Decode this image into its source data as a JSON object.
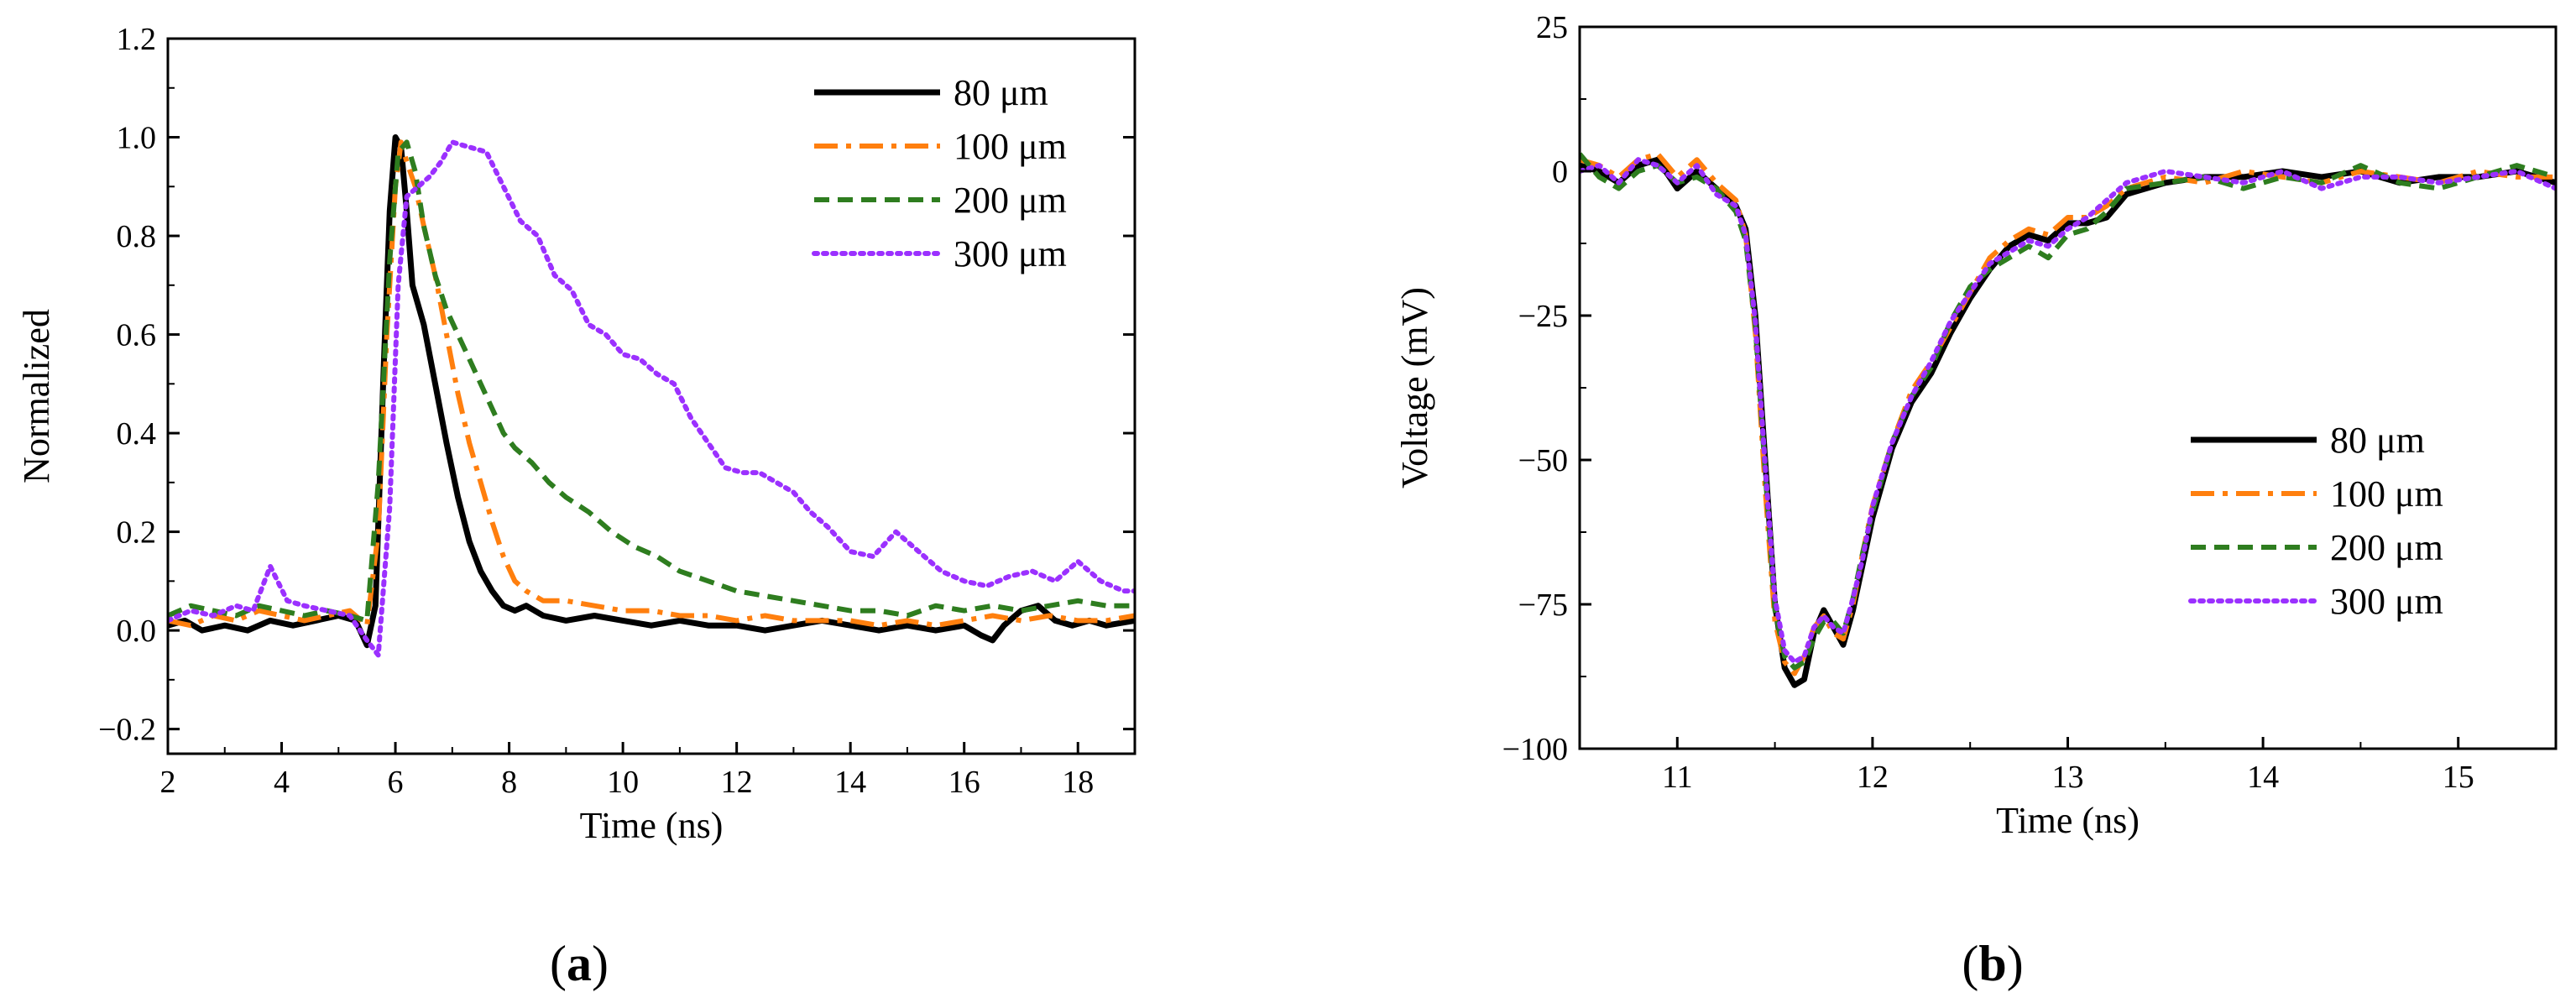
{
  "panels": [
    {
      "label_open": "(",
      "label_letter": "a",
      "label_close": ")"
    },
    {
      "label_open": "(",
      "label_letter": "b",
      "label_close": ")"
    }
  ],
  "chart_data": [
    {
      "type": "line",
      "title": "",
      "xlabel": "Time (ns)",
      "ylabel": "Normalized",
      "xlim": [
        2,
        19
      ],
      "ylim": [
        -0.25,
        1.2
      ],
      "xticks": [
        2,
        4,
        6,
        8,
        10,
        12,
        14,
        16,
        18
      ],
      "xtick_labels": [
        "2",
        "4",
        "6",
        "8",
        "10",
        "12",
        "14",
        "16",
        "18"
      ],
      "yticks": [
        -0.2,
        0.0,
        0.2,
        0.4,
        0.6,
        0.8,
        1.0,
        1.2
      ],
      "ytick_labels": [
        "−0.2",
        "0.0",
        "0.2",
        "0.4",
        "0.6",
        "0.8",
        "1.0",
        "1.2"
      ],
      "grid": false,
      "legend_position": "top-right",
      "series": [
        {
          "name": "80 μm",
          "color": "#000000",
          "dash": "solid",
          "x": [
            2.0,
            2.3,
            2.6,
            3.0,
            3.4,
            3.8,
            4.2,
            4.6,
            5.0,
            5.3,
            5.5,
            5.65,
            5.8,
            5.9,
            6.0,
            6.1,
            6.2,
            6.3,
            6.5,
            6.7,
            6.9,
            7.1,
            7.3,
            7.5,
            7.7,
            7.9,
            8.1,
            8.3,
            8.6,
            9.0,
            9.5,
            10.0,
            10.5,
            11.0,
            11.5,
            12.0,
            12.5,
            13.0,
            13.5,
            14.0,
            14.5,
            15.0,
            15.5,
            16.0,
            16.3,
            16.5,
            16.7,
            17.0,
            17.3,
            17.6,
            17.9,
            18.2,
            18.5,
            19.0
          ],
          "y": [
            0.01,
            0.02,
            0.0,
            0.01,
            0.0,
            0.02,
            0.01,
            0.02,
            0.03,
            0.02,
            -0.03,
            0.05,
            0.55,
            0.85,
            1.0,
            0.98,
            0.85,
            0.7,
            0.62,
            0.5,
            0.38,
            0.27,
            0.18,
            0.12,
            0.08,
            0.05,
            0.04,
            0.05,
            0.03,
            0.02,
            0.03,
            0.02,
            0.01,
            0.02,
            0.01,
            0.01,
            0.0,
            0.01,
            0.02,
            0.01,
            0.0,
            0.01,
            0.0,
            0.01,
            -0.01,
            -0.02,
            0.01,
            0.04,
            0.05,
            0.02,
            0.01,
            0.02,
            0.01,
            0.02
          ]
        },
        {
          "name": "100 μm",
          "color": "#ff7f0e",
          "dash": "dashdot",
          "x": [
            2.0,
            2.4,
            2.8,
            3.2,
            3.6,
            4.0,
            4.4,
            4.8,
            5.2,
            5.5,
            5.7,
            5.85,
            6.0,
            6.1,
            6.2,
            6.35,
            6.5,
            6.7,
            6.9,
            7.1,
            7.3,
            7.5,
            7.7,
            7.9,
            8.1,
            8.3,
            8.6,
            9.0,
            9.5,
            10.0,
            10.5,
            11.0,
            11.5,
            12.0,
            12.5,
            13.0,
            13.5,
            14.0,
            14.5,
            15.0,
            15.5,
            16.0,
            16.5,
            17.0,
            17.5,
            18.0,
            18.5,
            19.0
          ],
          "y": [
            0.02,
            0.01,
            0.03,
            0.02,
            0.04,
            0.03,
            0.02,
            0.03,
            0.04,
            0.01,
            0.2,
            0.6,
            0.9,
            0.99,
            0.95,
            0.9,
            0.82,
            0.72,
            0.6,
            0.48,
            0.38,
            0.3,
            0.22,
            0.15,
            0.1,
            0.08,
            0.06,
            0.06,
            0.05,
            0.04,
            0.04,
            0.03,
            0.03,
            0.02,
            0.03,
            0.02,
            0.02,
            0.02,
            0.01,
            0.02,
            0.01,
            0.02,
            0.03,
            0.02,
            0.03,
            0.02,
            0.02,
            0.03
          ]
        },
        {
          "name": "200 μm",
          "color": "#2e7d1f",
          "dash": "dashed",
          "x": [
            2.0,
            2.4,
            2.8,
            3.2,
            3.6,
            4.0,
            4.4,
            4.8,
            5.2,
            5.5,
            5.7,
            5.9,
            6.05,
            6.2,
            6.35,
            6.5,
            6.7,
            6.9,
            7.1,
            7.3,
            7.5,
            7.7,
            7.9,
            8.1,
            8.4,
            8.7,
            9.0,
            9.4,
            9.8,
            10.2,
            10.6,
            11.0,
            11.5,
            12.0,
            12.5,
            13.0,
            13.5,
            14.0,
            14.5,
            15.0,
            15.5,
            16.0,
            16.5,
            17.0,
            17.5,
            18.0,
            18.5,
            19.0
          ],
          "y": [
            0.03,
            0.05,
            0.04,
            0.03,
            0.05,
            0.04,
            0.03,
            0.04,
            0.03,
            0.02,
            0.3,
            0.75,
            0.97,
            0.99,
            0.93,
            0.82,
            0.72,
            0.65,
            0.6,
            0.55,
            0.5,
            0.45,
            0.4,
            0.37,
            0.34,
            0.3,
            0.27,
            0.24,
            0.2,
            0.17,
            0.15,
            0.12,
            0.1,
            0.08,
            0.07,
            0.06,
            0.05,
            0.04,
            0.04,
            0.03,
            0.05,
            0.04,
            0.05,
            0.04,
            0.05,
            0.06,
            0.05,
            0.05
          ]
        },
        {
          "name": "300 μm",
          "color": "#9b30ff",
          "dash": "dotted",
          "x": [
            2.0,
            2.4,
            2.8,
            3.2,
            3.5,
            3.8,
            4.1,
            4.4,
            4.8,
            5.2,
            5.5,
            5.7,
            5.9,
            6.05,
            6.2,
            6.4,
            6.6,
            6.8,
            7.0,
            7.3,
            7.6,
            7.9,
            8.2,
            8.5,
            8.8,
            9.1,
            9.4,
            9.7,
            10.0,
            10.3,
            10.6,
            10.9,
            11.2,
            11.5,
            11.8,
            12.1,
            12.4,
            12.7,
            13.0,
            13.3,
            13.6,
            14.0,
            14.4,
            14.8,
            15.2,
            15.6,
            16.0,
            16.4,
            16.8,
            17.2,
            17.6,
            18.0,
            18.4,
            18.8,
            19.0
          ],
          "y": [
            0.02,
            0.04,
            0.03,
            0.05,
            0.04,
            0.13,
            0.06,
            0.05,
            0.04,
            0.03,
            -0.02,
            -0.05,
            0.25,
            0.7,
            0.88,
            0.9,
            0.92,
            0.95,
            0.99,
            0.98,
            0.97,
            0.9,
            0.83,
            0.8,
            0.72,
            0.69,
            0.62,
            0.6,
            0.56,
            0.55,
            0.52,
            0.5,
            0.43,
            0.38,
            0.33,
            0.32,
            0.32,
            0.3,
            0.28,
            0.24,
            0.21,
            0.16,
            0.15,
            0.2,
            0.16,
            0.12,
            0.1,
            0.09,
            0.11,
            0.12,
            0.1,
            0.14,
            0.1,
            0.08,
            0.08
          ]
        }
      ]
    },
    {
      "type": "line",
      "title": "",
      "xlabel": "Time (ns)",
      "ylabel": "Voltage (mV)",
      "xlim": [
        10.5,
        15.5
      ],
      "ylim": [
        -100,
        25
      ],
      "xticks": [
        11,
        12,
        13,
        14,
        15
      ],
      "xtick_labels": [
        "11",
        "12",
        "13",
        "14",
        "15"
      ],
      "yticks": [
        -100,
        -75,
        -50,
        -25,
        0,
        25
      ],
      "ytick_labels": [
        "−100",
        "−75",
        "−50",
        "−25",
        "0",
        "25"
      ],
      "grid": false,
      "legend_position": "right",
      "series": [
        {
          "name": "80 μm",
          "color": "#000000",
          "dash": "solid",
          "x": [
            10.5,
            10.6,
            10.7,
            10.8,
            10.9,
            11.0,
            11.1,
            11.2,
            11.3,
            11.35,
            11.4,
            11.45,
            11.5,
            11.55,
            11.6,
            11.65,
            11.7,
            11.75,
            11.8,
            11.85,
            11.9,
            11.95,
            12.0,
            12.1,
            12.2,
            12.3,
            12.4,
            12.5,
            12.6,
            12.7,
            12.8,
            12.9,
            13.0,
            13.1,
            13.2,
            13.3,
            13.5,
            13.7,
            13.9,
            14.1,
            14.3,
            14.5,
            14.7,
            14.9,
            15.1,
            15.3,
            15.5
          ],
          "y": [
            1,
            0,
            -2,
            1,
            2,
            -3,
            0,
            -3,
            -6,
            -10,
            -25,
            -50,
            -75,
            -86,
            -89,
            -88,
            -80,
            -76,
            -79,
            -82,
            -76,
            -68,
            -60,
            -48,
            -40,
            -35,
            -28,
            -22,
            -17,
            -13,
            -11,
            -12,
            -9,
            -9,
            -8,
            -4,
            -2,
            -1,
            -1,
            0,
            -1,
            0,
            -2,
            -1,
            -1,
            0,
            -2
          ]
        },
        {
          "name": "100 μm",
          "color": "#ff7f0e",
          "dash": "dashdot",
          "x": [
            10.5,
            10.6,
            10.7,
            10.8,
            10.9,
            11.0,
            11.1,
            11.2,
            11.3,
            11.35,
            11.4,
            11.45,
            11.5,
            11.55,
            11.6,
            11.65,
            11.7,
            11.75,
            11.8,
            11.85,
            11.9,
            11.95,
            12.0,
            12.1,
            12.2,
            12.3,
            12.4,
            12.5,
            12.6,
            12.7,
            12.8,
            12.9,
            13.0,
            13.1,
            13.2,
            13.3,
            13.5,
            13.7,
            13.9,
            14.1,
            14.3,
            14.5,
            14.7,
            14.9,
            15.1,
            15.3,
            15.5
          ],
          "y": [
            2,
            1,
            -1,
            2,
            3,
            -1,
            2,
            -2,
            -5,
            -11,
            -28,
            -55,
            -78,
            -85,
            -87,
            -84,
            -79,
            -77,
            -80,
            -81,
            -75,
            -66,
            -58,
            -47,
            -38,
            -33,
            -27,
            -21,
            -15,
            -12,
            -10,
            -11,
            -8,
            -8,
            -6,
            -3,
            -1,
            -2,
            0,
            -1,
            -2,
            0,
            -1,
            -2,
            0,
            -1,
            -1
          ]
        },
        {
          "name": "200 μm",
          "color": "#2e7d1f",
          "dash": "dashed",
          "x": [
            10.5,
            10.6,
            10.7,
            10.8,
            10.9,
            11.0,
            11.1,
            11.2,
            11.3,
            11.35,
            11.4,
            11.45,
            11.5,
            11.55,
            11.6,
            11.65,
            11.7,
            11.75,
            11.8,
            11.85,
            11.9,
            11.95,
            12.0,
            12.1,
            12.2,
            12.3,
            12.4,
            12.5,
            12.6,
            12.7,
            12.8,
            12.9,
            13.0,
            13.1,
            13.2,
            13.3,
            13.5,
            13.7,
            13.9,
            14.1,
            14.3,
            14.5,
            14.7,
            14.9,
            15.1,
            15.3,
            15.5
          ],
          "y": [
            3,
            -1,
            -3,
            0,
            1,
            -2,
            -1,
            -3,
            -7,
            -12,
            -27,
            -52,
            -76,
            -84,
            -86,
            -85,
            -81,
            -78,
            -78,
            -80,
            -74,
            -66,
            -59,
            -47,
            -39,
            -34,
            -26,
            -20,
            -17,
            -15,
            -13,
            -15,
            -11,
            -10,
            -7,
            -3,
            -2,
            -1,
            -3,
            -1,
            -2,
            1,
            -2,
            -3,
            -1,
            1,
            -1
          ]
        },
        {
          "name": "300 μm",
          "color": "#9b30ff",
          "dash": "dotted",
          "x": [
            10.5,
            10.6,
            10.7,
            10.8,
            10.9,
            11.0,
            11.1,
            11.2,
            11.3,
            11.35,
            11.4,
            11.45,
            11.5,
            11.55,
            11.6,
            11.65,
            11.7,
            11.75,
            11.8,
            11.85,
            11.9,
            11.95,
            12.0,
            12.1,
            12.2,
            12.3,
            12.4,
            12.5,
            12.6,
            12.7,
            12.8,
            12.9,
            13.0,
            13.1,
            13.2,
            13.3,
            13.5,
            13.7,
            13.9,
            14.1,
            14.3,
            14.5,
            14.7,
            14.9,
            15.1,
            15.3,
            15.5
          ],
          "y": [
            0,
            1,
            -2,
            2,
            1,
            -2,
            1,
            -4,
            -6,
            -11,
            -26,
            -51,
            -74,
            -83,
            -85,
            -84,
            -79,
            -77,
            -79,
            -80,
            -74,
            -67,
            -58,
            -47,
            -39,
            -33,
            -26,
            -21,
            -16,
            -14,
            -12,
            -13,
            -10,
            -8,
            -5,
            -2,
            0,
            -1,
            -2,
            0,
            -3,
            -1,
            -1,
            -2,
            -1,
            0,
            -3
          ]
        }
      ]
    }
  ]
}
